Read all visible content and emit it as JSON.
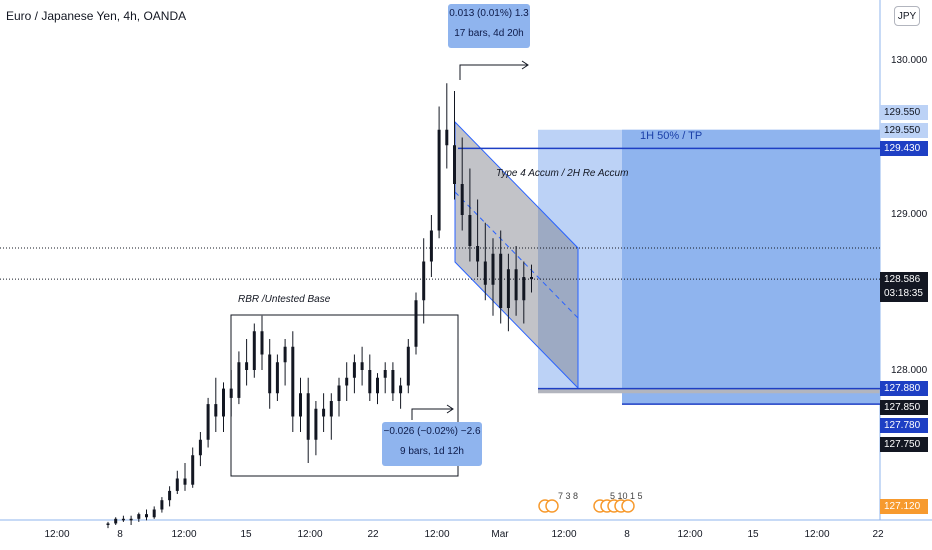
{
  "title": "Euro / Japanese Yen, 4h, OANDA",
  "currency_button": "JPY",
  "top_measure": {
    "line1": "0.013 (0.01%) 1.3",
    "line2": "17 bars, 4d 20h"
  },
  "bottom_measure": {
    "line1": "−0.026 (−0.02%) −2.6",
    "line2": "9 bars, 1d 12h"
  },
  "annotations": {
    "rbr": "RBR /Untested Base",
    "channel": "Type 4 Accum / 2H Re Accum",
    "tp": "1H 50% / TP"
  },
  "price_axis": {
    "ticks": [
      "130.000",
      "129.000",
      "128.000"
    ],
    "badges": [
      {
        "label": "129.550",
        "style": "light"
      },
      {
        "label": "129.550",
        "style": "light"
      },
      {
        "label": "129.430",
        "style": "blue"
      },
      {
        "label": "128.586",
        "style": "dark",
        "sub": "03:18:35"
      },
      {
        "label": "127.880",
        "style": "blue"
      },
      {
        "label": "127.850",
        "style": "dark"
      },
      {
        "label": "127.780",
        "style": "blue"
      },
      {
        "label": "127.750",
        "style": "dark"
      },
      {
        "label": "127.120",
        "style": "orange"
      }
    ]
  },
  "time_axis": {
    "ticks": [
      "12:00",
      "8",
      "12:00",
      "15",
      "12:00",
      "22",
      "12:00",
      "Mar",
      "12:00",
      "8",
      "12:00",
      "15",
      "12:00",
      "22"
    ]
  },
  "event_markers": {
    "group1": "7 3 8",
    "group2": "5 10 1 5"
  },
  "colors": {
    "candle": "#131722",
    "zone": "#8fb4ee",
    "zone_light": "#bcd2f6",
    "line_blue": "#1e3fc4",
    "orange": "#f79a2e"
  },
  "chart_data": {
    "type": "candlestick",
    "title": "Euro / Japanese Yen, 4h, OANDA",
    "x_axis_ticks": [
      "12:00",
      "8",
      "12:00",
      "15",
      "12:00",
      "22",
      "12:00",
      "Mar",
      "12:00",
      "8",
      "12:00",
      "15",
      "12:00",
      "22"
    ],
    "y_axis_ticks": [
      130.0,
      129.0,
      128.0
    ],
    "ylim": [
      127.0,
      130.4
    ],
    "last_price": 128.586,
    "countdown": "03:18:35",
    "levels": [
      129.55,
      129.43,
      127.88,
      127.85,
      127.78,
      127.75,
      127.12
    ],
    "candles": [
      [
        127.0,
        127.02,
        126.98,
        127.01
      ],
      [
        127.01,
        127.05,
        127.0,
        127.04
      ],
      [
        127.04,
        127.06,
        127.02,
        127.03
      ],
      [
        127.03,
        127.06,
        127.0,
        127.04
      ],
      [
        127.04,
        127.08,
        127.02,
        127.07
      ],
      [
        127.07,
        127.1,
        127.03,
        127.05
      ],
      [
        127.05,
        127.12,
        127.04,
        127.1
      ],
      [
        127.1,
        127.18,
        127.08,
        127.16
      ],
      [
        127.16,
        127.25,
        127.12,
        127.22
      ],
      [
        127.22,
        127.35,
        127.2,
        127.3
      ],
      [
        127.3,
        127.4,
        127.22,
        127.26
      ],
      [
        127.26,
        127.5,
        127.24,
        127.45
      ],
      [
        127.45,
        127.6,
        127.38,
        127.55
      ],
      [
        127.55,
        127.82,
        127.5,
        127.78
      ],
      [
        127.78,
        127.95,
        127.6,
        127.7
      ],
      [
        127.7,
        127.92,
        127.6,
        127.88
      ],
      [
        127.88,
        128.0,
        127.7,
        127.82
      ],
      [
        127.82,
        128.12,
        127.78,
        128.05
      ],
      [
        128.05,
        128.2,
        127.9,
        128.0
      ],
      [
        128.0,
        128.3,
        127.95,
        128.25
      ],
      [
        128.25,
        128.35,
        128.0,
        128.1
      ],
      [
        128.1,
        128.2,
        127.75,
        127.85
      ],
      [
        127.85,
        128.1,
        127.8,
        128.05
      ],
      [
        128.05,
        128.2,
        127.9,
        128.15
      ],
      [
        128.15,
        128.25,
        127.6,
        127.7
      ],
      [
        127.7,
        127.95,
        127.6,
        127.85
      ],
      [
        127.85,
        127.95,
        127.4,
        127.55
      ],
      [
        127.55,
        127.8,
        127.45,
        127.75
      ],
      [
        127.75,
        127.85,
        127.6,
        127.7
      ],
      [
        127.7,
        127.85,
        127.55,
        127.8
      ],
      [
        127.8,
        127.95,
        127.7,
        127.9
      ],
      [
        127.9,
        128.05,
        127.8,
        127.95
      ],
      [
        127.95,
        128.1,
        127.85,
        128.05
      ],
      [
        128.05,
        128.15,
        127.9,
        128.0
      ],
      [
        128.0,
        128.1,
        127.8,
        127.85
      ],
      [
        127.85,
        127.98,
        127.78,
        127.95
      ],
      [
        127.95,
        128.05,
        127.85,
        128.0
      ],
      [
        128.0,
        128.05,
        127.8,
        127.85
      ],
      [
        127.85,
        127.95,
        127.75,
        127.9
      ],
      [
        127.9,
        128.2,
        127.85,
        128.15
      ],
      [
        128.15,
        128.5,
        128.1,
        128.45
      ],
      [
        128.45,
        128.85,
        128.3,
        128.7
      ],
      [
        128.7,
        129.0,
        128.6,
        128.9
      ],
      [
        128.9,
        129.7,
        128.85,
        129.55
      ],
      [
        129.55,
        129.85,
        129.3,
        129.45
      ],
      [
        129.45,
        129.8,
        129.1,
        129.2
      ],
      [
        129.2,
        129.5,
        128.9,
        129.0
      ],
      [
        129.0,
        129.3,
        128.7,
        128.8
      ],
      [
        128.8,
        129.1,
        128.6,
        128.7
      ],
      [
        128.7,
        128.95,
        128.45,
        128.55
      ],
      [
        128.55,
        128.85,
        128.35,
        128.75
      ],
      [
        128.75,
        128.9,
        128.3,
        128.4
      ],
      [
        128.4,
        128.75,
        128.25,
        128.65
      ],
      [
        128.65,
        128.8,
        128.35,
        128.45
      ],
      [
        128.45,
        128.7,
        128.3,
        128.6
      ],
      [
        128.6,
        128.68,
        128.5,
        128.586
      ]
    ]
  }
}
